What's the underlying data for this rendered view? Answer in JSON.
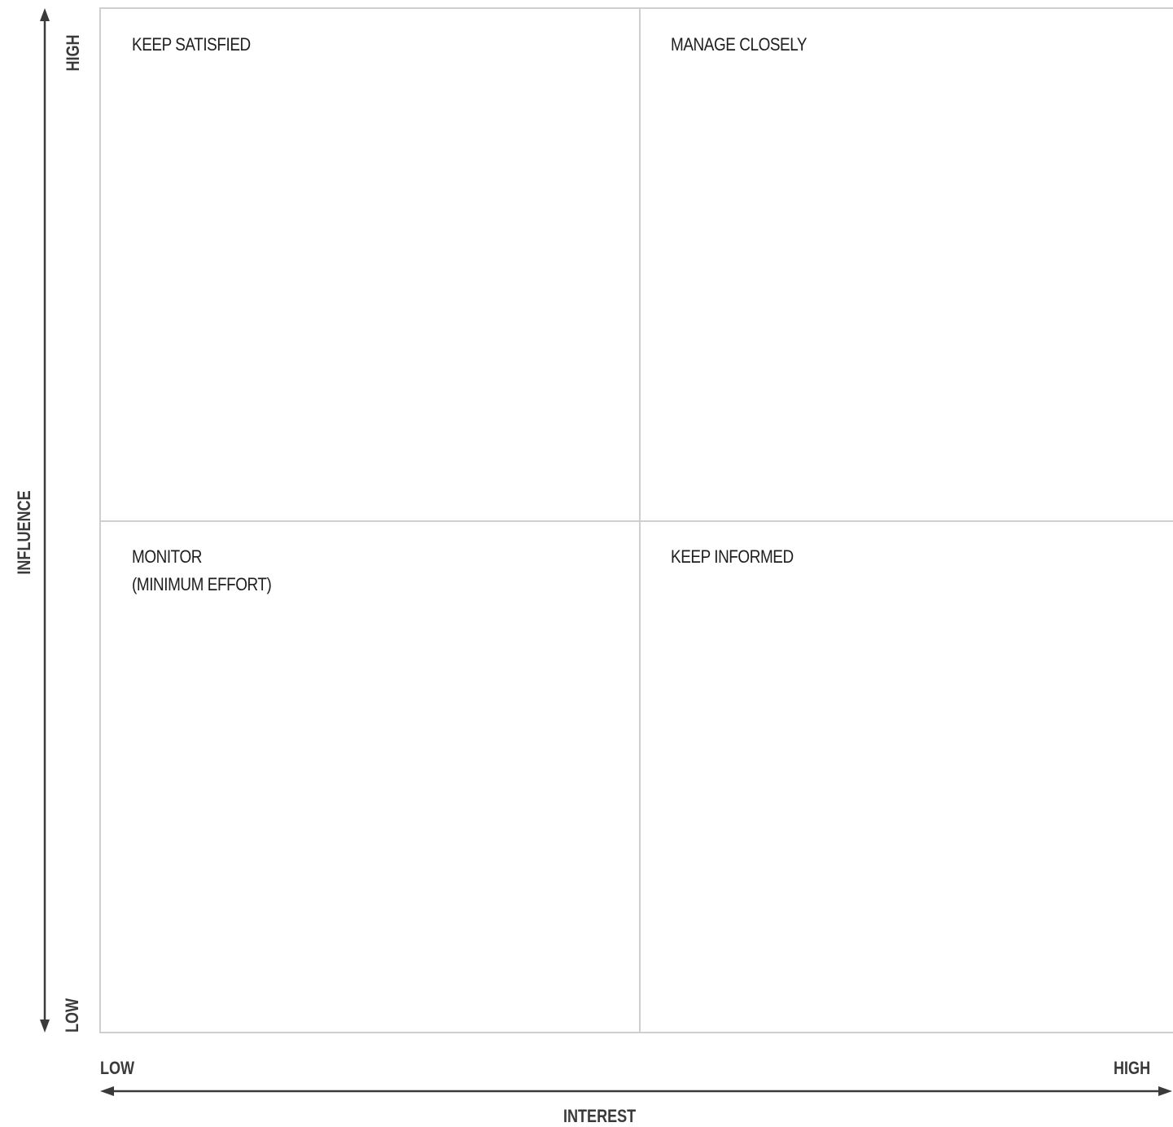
{
  "quadrants": {
    "top_left": {
      "lines": [
        "KEEP SATISFIED"
      ]
    },
    "top_right": {
      "lines": [
        "MANAGE CLOSELY"
      ]
    },
    "bottom_left": {
      "lines": [
        "MONITOR",
        "(MINIMUM EFFORT)"
      ]
    },
    "bottom_right": {
      "lines": [
        "KEEP INFORMED"
      ]
    }
  },
  "y_axis": {
    "title": "INFLUENCE",
    "high": "HIGH",
    "low": "LOW"
  },
  "x_axis": {
    "title": "INTEREST",
    "low": "LOW",
    "high": "HIGH"
  },
  "colors": {
    "grid": "#cfcfcf",
    "axis": "#3a3a3a",
    "text": "#1e1e1e"
  }
}
